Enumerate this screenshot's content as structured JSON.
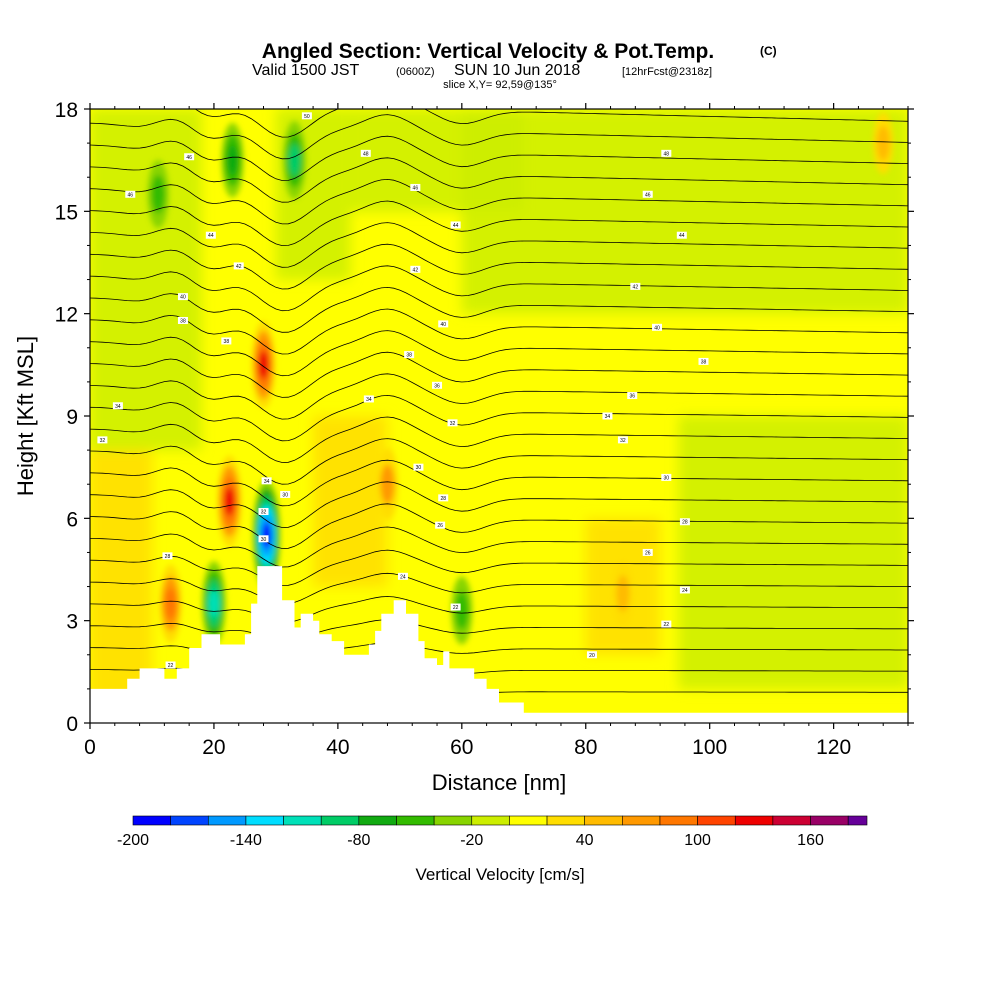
{
  "title": {
    "main": "Angled Section: Vertical Velocity & Pot.Temp.",
    "unit_tag": "(C)",
    "valid_prefix": "Valid 1500 JST",
    "valid_utc": "(0600Z)",
    "valid_date": "SUN 10 Jun 2018",
    "forecast_tag": "[12hrFcst@2318z]",
    "slice": "slice X,Y= 92,59@135°"
  },
  "colors": {
    "background": "#ffffff",
    "frame": "#000000",
    "terrain": "#ffffff",
    "contour": "#000000"
  },
  "chart_data": {
    "type": "heatmap",
    "title": "Angled Section: Vertical Velocity & Pot.Temp.",
    "xlabel": "Distance [nm]",
    "ylabel": "Height [Kft MSL]",
    "xlim": [
      0,
      132
    ],
    "ylim": [
      0,
      18
    ],
    "x_ticks": [
      "0",
      "20",
      "40",
      "60",
      "80",
      "100",
      "120"
    ],
    "y_ticks": [
      "0",
      "3",
      "6",
      "9",
      "12",
      "15",
      "18"
    ],
    "x_tick_values": [
      0,
      20,
      40,
      60,
      80,
      100,
      120
    ],
    "y_tick_values": [
      0,
      3,
      6,
      9,
      12,
      15,
      18
    ],
    "colorbar": {
      "label": "Vertical Velocity [cm/s]",
      "tick_labels": [
        "-200",
        "-140",
        "-80",
        "-20",
        "40",
        "100",
        "160"
      ],
      "tick_values": [
        -200,
        -140,
        -80,
        -20,
        40,
        100,
        160
      ],
      "min": -200,
      "max": 190,
      "bins": [
        {
          "from": -200,
          "to": -180,
          "color": "#0000ff"
        },
        {
          "from": -180,
          "to": -160,
          "color": "#0044ff"
        },
        {
          "from": -160,
          "to": -140,
          "color": "#0099ff"
        },
        {
          "from": -140,
          "to": -120,
          "color": "#00ddff"
        },
        {
          "from": -120,
          "to": -100,
          "color": "#00e0b8"
        },
        {
          "from": -100,
          "to": -80,
          "color": "#00cc66"
        },
        {
          "from": -80,
          "to": -60,
          "color": "#11aa11"
        },
        {
          "from": -60,
          "to": -40,
          "color": "#33bb00"
        },
        {
          "from": -40,
          "to": -20,
          "color": "#88d400"
        },
        {
          "from": -20,
          "to": 0,
          "color": "#ccee00"
        },
        {
          "from": 0,
          "to": 20,
          "color": "#ffff00"
        },
        {
          "from": 20,
          "to": 40,
          "color": "#ffdd00"
        },
        {
          "from": 40,
          "to": 60,
          "color": "#ffbb00"
        },
        {
          "from": 60,
          "to": 80,
          "color": "#ff9900"
        },
        {
          "from": 80,
          "to": 100,
          "color": "#ff7700"
        },
        {
          "from": 100,
          "to": 120,
          "color": "#ff4400"
        },
        {
          "from": 120,
          "to": 140,
          "color": "#ee0000"
        },
        {
          "from": 140,
          "to": 160,
          "color": "#cc0033"
        },
        {
          "from": 160,
          "to": 180,
          "color": "#990066"
        },
        {
          "from": 180,
          "to": 190,
          "color": "#660099"
        }
      ]
    },
    "terrain_profile": [
      [
        0,
        0
      ],
      [
        0,
        1.0
      ],
      [
        6,
        1.0
      ],
      [
        6,
        1.3
      ],
      [
        8,
        1.3
      ],
      [
        8,
        1.6
      ],
      [
        12,
        1.6
      ],
      [
        12,
        1.3
      ],
      [
        14,
        1.3
      ],
      [
        14,
        1.6
      ],
      [
        16,
        1.6
      ],
      [
        16,
        2.2
      ],
      [
        18,
        2.2
      ],
      [
        18,
        2.6
      ],
      [
        21,
        2.6
      ],
      [
        21,
        2.3
      ],
      [
        23,
        2.3
      ],
      [
        23,
        2.3
      ],
      [
        25,
        2.3
      ],
      [
        25,
        2.6
      ],
      [
        26,
        2.6
      ],
      [
        26,
        3.5
      ],
      [
        27,
        3.5
      ],
      [
        27,
        4.6
      ],
      [
        31,
        4.6
      ],
      [
        31,
        3.6
      ],
      [
        33,
        3.6
      ],
      [
        33,
        2.8
      ],
      [
        34,
        2.8
      ],
      [
        34,
        3.2
      ],
      [
        36,
        3.2
      ],
      [
        36,
        3.0
      ],
      [
        37,
        3.0
      ],
      [
        37,
        2.6
      ],
      [
        39,
        2.6
      ],
      [
        39,
        2.4
      ],
      [
        41,
        2.4
      ],
      [
        41,
        2.0
      ],
      [
        45,
        2.0
      ],
      [
        45,
        2.3
      ],
      [
        46,
        2.3
      ],
      [
        46,
        2.7
      ],
      [
        47,
        2.7
      ],
      [
        47,
        3.2
      ],
      [
        49,
        3.2
      ],
      [
        49,
        3.6
      ],
      [
        51,
        3.6
      ],
      [
        51,
        3.2
      ],
      [
        53,
        3.2
      ],
      [
        53,
        2.4
      ],
      [
        54,
        2.4
      ],
      [
        54,
        1.9
      ],
      [
        56,
        1.9
      ],
      [
        56,
        1.7
      ],
      [
        57,
        1.7
      ],
      [
        57,
        2.1
      ],
      [
        58,
        2.1
      ],
      [
        58,
        1.6
      ],
      [
        60,
        1.6
      ],
      [
        60,
        1.6
      ],
      [
        62,
        1.6
      ],
      [
        62,
        1.3
      ],
      [
        64,
        1.3
      ],
      [
        64,
        1.0
      ],
      [
        66,
        1.0
      ],
      [
        66,
        0.6
      ],
      [
        70,
        0.6
      ],
      [
        70,
        0.3
      ],
      [
        132,
        0.3
      ],
      [
        132,
        0
      ]
    ],
    "features": [
      {
        "type": "updraft",
        "x": 22.5,
        "y": 6.5,
        "value": 130,
        "note": "main updraft core"
      },
      {
        "type": "updraft",
        "x": 28,
        "y": 10.5,
        "value": 120,
        "note": "upper updraft"
      },
      {
        "type": "updraft",
        "x": 13,
        "y": 3.5,
        "value": 90
      },
      {
        "type": "downdraft",
        "x": 28.5,
        "y": 5.5,
        "value": -190,
        "note": "strong downdraft"
      },
      {
        "type": "downdraft",
        "x": 20,
        "y": 3.5,
        "value": -110
      },
      {
        "type": "downdraft",
        "x": 33,
        "y": 16.5,
        "value": -90
      },
      {
        "type": "downdraft",
        "x": 23,
        "y": 16.5,
        "value": -80
      },
      {
        "type": "downdraft",
        "x": 11,
        "y": 15.5,
        "value": -60
      },
      {
        "type": "updraft",
        "x": 48,
        "y": 7.0,
        "value": 70
      },
      {
        "type": "downdraft",
        "x": 60,
        "y": 3.3,
        "value": -60
      },
      {
        "type": "updraft",
        "x": 86,
        "y": 3.8,
        "value": 50
      },
      {
        "type": "updraft",
        "x": 128,
        "y": 17.0,
        "value": 40
      }
    ],
    "contour_labels": [
      {
        "x": 6.5,
        "y": 15.5,
        "text": "46"
      },
      {
        "x": 16,
        "y": 16.6,
        "text": "46"
      },
      {
        "x": 19.5,
        "y": 14.3,
        "text": "44"
      },
      {
        "x": 24,
        "y": 13.4,
        "text": "42"
      },
      {
        "x": 15,
        "y": 12.5,
        "text": "40"
      },
      {
        "x": 15,
        "y": 11.8,
        "text": "38"
      },
      {
        "x": 22,
        "y": 11.2,
        "text": "38"
      },
      {
        "x": 4.5,
        "y": 9.3,
        "text": "34"
      },
      {
        "x": 2,
        "y": 8.3,
        "text": "32"
      },
      {
        "x": 12.5,
        "y": 4.9,
        "text": "28"
      },
      {
        "x": 13,
        "y": 1.7,
        "text": "22"
      },
      {
        "x": 28.5,
        "y": 7.1,
        "text": "34"
      },
      {
        "x": 28,
        "y": 6.2,
        "text": "32"
      },
      {
        "x": 28,
        "y": 5.4,
        "text": "30"
      },
      {
        "x": 31.5,
        "y": 6.7,
        "text": "30"
      },
      {
        "x": 35,
        "y": 17.8,
        "text": "50"
      },
      {
        "x": 44.5,
        "y": 16.7,
        "text": "48"
      },
      {
        "x": 52.5,
        "y": 15.7,
        "text": "46"
      },
      {
        "x": 59,
        "y": 14.6,
        "text": "44"
      },
      {
        "x": 52.5,
        "y": 13.3,
        "text": "42"
      },
      {
        "x": 57,
        "y": 11.7,
        "text": "40"
      },
      {
        "x": 51.5,
        "y": 10.8,
        "text": "38"
      },
      {
        "x": 56,
        "y": 9.9,
        "text": "36"
      },
      {
        "x": 45,
        "y": 9.5,
        "text": "34"
      },
      {
        "x": 58.5,
        "y": 8.8,
        "text": "32"
      },
      {
        "x": 53,
        "y": 7.5,
        "text": "30"
      },
      {
        "x": 57,
        "y": 6.6,
        "text": "28"
      },
      {
        "x": 56.5,
        "y": 5.8,
        "text": "26"
      },
      {
        "x": 50.5,
        "y": 4.3,
        "text": "24"
      },
      {
        "x": 59,
        "y": 3.4,
        "text": "22"
      },
      {
        "x": 93,
        "y": 16.7,
        "text": "48"
      },
      {
        "x": 90,
        "y": 15.5,
        "text": "46"
      },
      {
        "x": 95.5,
        "y": 14.3,
        "text": "44"
      },
      {
        "x": 88,
        "y": 12.8,
        "text": "42"
      },
      {
        "x": 91.5,
        "y": 11.6,
        "text": "40"
      },
      {
        "x": 99,
        "y": 10.6,
        "text": "38"
      },
      {
        "x": 87.5,
        "y": 9.6,
        "text": "36"
      },
      {
        "x": 83.5,
        "y": 9.0,
        "text": "34"
      },
      {
        "x": 86,
        "y": 8.3,
        "text": "32"
      },
      {
        "x": 93,
        "y": 7.2,
        "text": "30"
      },
      {
        "x": 96,
        "y": 5.9,
        "text": "28"
      },
      {
        "x": 90,
        "y": 5.0,
        "text": "26"
      },
      {
        "x": 96,
        "y": 3.9,
        "text": "24"
      },
      {
        "x": 93,
        "y": 2.9,
        "text": "22"
      },
      {
        "x": 81,
        "y": 2.0,
        "text": "20"
      }
    ]
  }
}
